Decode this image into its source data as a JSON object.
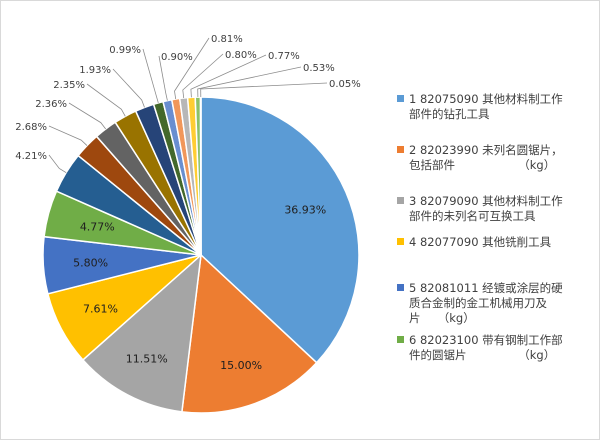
{
  "chart_data": {
    "type": "pie",
    "title": "",
    "slices": [
      {
        "name": "1 82075090 其他材料制工作部件的钻孔工具",
        "value": 36.93,
        "label": "36.93%",
        "color": "#5b9bd5"
      },
      {
        "name": "2 82023990 未列名圆锯片，包括部件 （kg）",
        "value": 15.0,
        "label": "15.00%",
        "color": "#ed7d31"
      },
      {
        "name": "3 82079090 其他材料制工作部件的未列名可互换工具",
        "value": 11.51,
        "label": "11.51%",
        "color": "#a5a5a5"
      },
      {
        "name": "4 82077090 其他铣削工具",
        "value": 7.61,
        "label": "7.61%",
        "color": "#ffc000"
      },
      {
        "name": "5 82081011 经镀或涂层的硬质合金制的金工机械用刀及片 （kg）",
        "value": 5.8,
        "label": "5.80%",
        "color": "#4472c4"
      },
      {
        "name": "6 82023100 带有钢制工作部件的圆锯片 （kg）",
        "value": 4.77,
        "label": "4.77%",
        "color": "#70ad47"
      },
      {
        "name": "",
        "value": 4.21,
        "label": "4.21%",
        "color": "#255e91"
      },
      {
        "name": "",
        "value": 2.68,
        "label": "2.68%",
        "color": "#9e480e"
      },
      {
        "name": "",
        "value": 2.36,
        "label": "2.36%",
        "color": "#636363"
      },
      {
        "name": "",
        "value": 2.35,
        "label": "2.35%",
        "color": "#997300"
      },
      {
        "name": "",
        "value": 1.93,
        "label": "1.93%",
        "color": "#264478"
      },
      {
        "name": "",
        "value": 0.99,
        "label": "0.99%",
        "color": "#43682b"
      },
      {
        "name": "",
        "value": 0.9,
        "label": "0.90%",
        "color": "#698ed0"
      },
      {
        "name": "",
        "value": 0.81,
        "label": "0.81%",
        "color": "#f1975a"
      },
      {
        "name": "",
        "value": 0.8,
        "label": "0.80%",
        "color": "#b7b7b7"
      },
      {
        "name": "",
        "value": 0.77,
        "label": "0.77%",
        "color": "#ffcd33"
      },
      {
        "name": "",
        "value": 0.53,
        "label": "0.53%",
        "color": "#8cc168"
      },
      {
        "name": "",
        "value": 0.05,
        "label": "0.05%",
        "color": "#327dc2"
      }
    ],
    "legend": {
      "position": "right",
      "entries": [
        {
          "lines": [
            "1 82075090 其他材料制工作",
            "部件的钻孔工具"
          ],
          "color": "#5b9bd5"
        },
        {
          "lines": [
            "2 82023990 未列名圆锯片，",
            "包括部件　　　　　　（kg）"
          ],
          "color": "#ed7d31"
        },
        {
          "lines": [
            "3 82079090 其他材料制工作",
            "部件的未列名可互换工具"
          ],
          "color": "#a5a5a5"
        },
        {
          "lines": [
            "4 82077090 其他铣削工具"
          ],
          "color": "#ffc000"
        },
        {
          "lines": [
            "5 82081011 经镀或涂层的硬",
            "质合金制的金工机械用刀及",
            "片　　（kg）"
          ],
          "color": "#4472c4"
        },
        {
          "lines": [
            "6 82023100 带有钢制工作部",
            "件的圆锯片　　　　　（kg）"
          ],
          "color": "#70ad47"
        }
      ]
    }
  }
}
